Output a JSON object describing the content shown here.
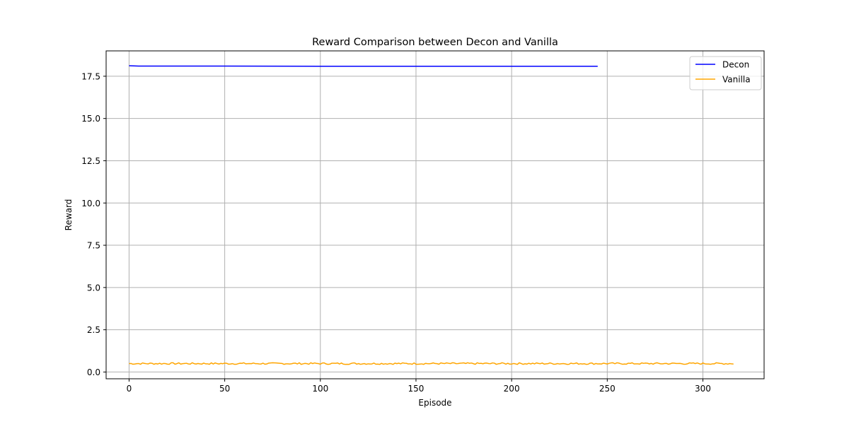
{
  "chart_data": {
    "type": "line",
    "title": "Reward Comparison between Decon and Vanilla",
    "xlabel": "Episode",
    "ylabel": "Reward",
    "xlim": [
      -12,
      332
    ],
    "ylim": [
      -0.4,
      19.0
    ],
    "xticks": [
      0,
      50,
      100,
      150,
      200,
      250,
      300
    ],
    "yticks": [
      0.0,
      2.5,
      5.0,
      7.5,
      10.0,
      12.5,
      15.0,
      17.5
    ],
    "xtick_labels": [
      "0",
      "50",
      "100",
      "150",
      "200",
      "250",
      "300"
    ],
    "ytick_labels": [
      "0.0",
      "2.5",
      "5.0",
      "7.5",
      "10.0",
      "12.5",
      "15.0",
      "17.5"
    ],
    "grid": true,
    "legend_position": "top-right",
    "series": [
      {
        "name": "Decon",
        "color": "#0000ff",
        "x_range": [
          0,
          245
        ],
        "x": [
          0,
          5,
          10,
          20,
          50,
          100,
          150,
          200,
          245
        ],
        "y": [
          18.12,
          18.1,
          18.1,
          18.1,
          18.1,
          18.09,
          18.09,
          18.09,
          18.09
        ]
      },
      {
        "name": "Vanilla",
        "color": "#ffa500",
        "x_range": [
          0,
          316
        ],
        "baseline": 0.5,
        "noise_amplitude": 0.05,
        "x": [],
        "y": []
      }
    ]
  }
}
